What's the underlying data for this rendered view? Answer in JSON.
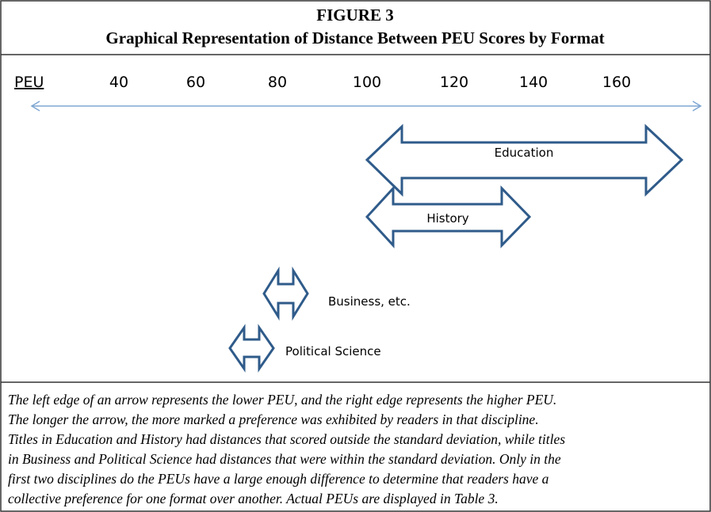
{
  "header": {
    "title": "FIGURE 3",
    "subtitle": "Graphical Representation of Distance Between PEU Scores by Format"
  },
  "axis": {
    "label": "PEU",
    "ticks": [
      "40",
      "60",
      "80",
      "100",
      "120",
      "140",
      "160"
    ]
  },
  "arrows": [
    {
      "label": "Education"
    },
    {
      "label": "History"
    },
    {
      "label": "Business, etc."
    },
    {
      "label": "Political Science"
    }
  ],
  "caption": [
    "The left edge of an arrow represents the lower PEU, and the right edge represents the higher PEU.",
    "The longer the arrow, the more marked a preference was exhibited by readers in that discipline.",
    "Titles in Education and History had distances that scored outside the standard deviation, while titles",
    "in Business and Political Science had distances that were within the standard deviation. Only in the",
    "first two disciplines do the PEUs have a large enough difference to determine that readers have a",
    "collective preference for one format over another. Actual PEUs are displayed in Table 3."
  ]
}
